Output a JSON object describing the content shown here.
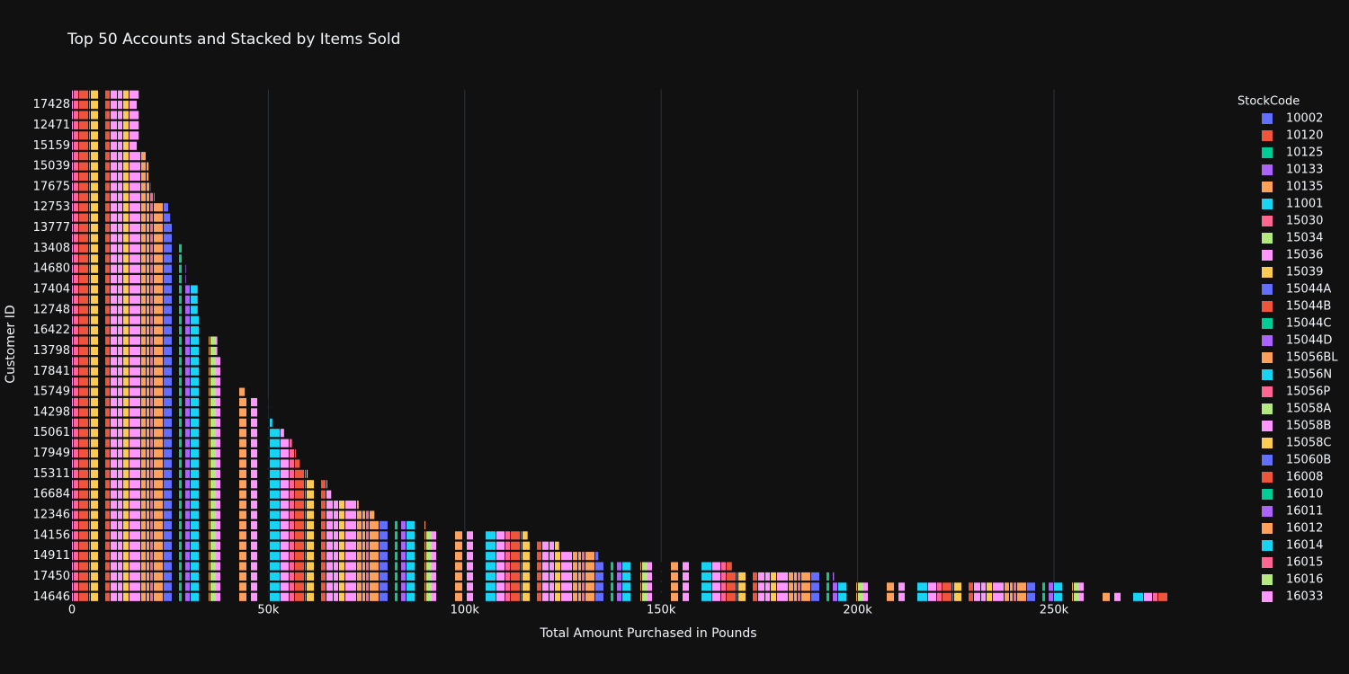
{
  "chart_data": {
    "type": "bar",
    "orientation": "horizontal",
    "title": "Top 50 Accounts and Stacked by Items Sold",
    "x_label": "Total Amount Purchased in Pounds",
    "y_label": "Customer ID",
    "categories": [
      "14646",
      null,
      "17450",
      null,
      "14911",
      null,
      "14156",
      null,
      "12346",
      null,
      "16684",
      null,
      "15311",
      null,
      "17949",
      null,
      "15061",
      null,
      "14298",
      null,
      "15749",
      null,
      "17841",
      null,
      "13798",
      null,
      "16422",
      null,
      "12748",
      null,
      "17404",
      null,
      "14680",
      null,
      "13408",
      null,
      "13777",
      null,
      "12753",
      null,
      "17675",
      null,
      "15039",
      null,
      "15159",
      null,
      "12471",
      null,
      "17428",
      null
    ],
    "values": [
      279000,
      259000,
      194000,
      168000,
      134000,
      124000,
      116000,
      90000,
      77000,
      73000,
      66000,
      65000,
      60000,
      58000,
      57000,
      56000,
      54000,
      51000,
      50000,
      50000,
      44000,
      42000,
      40000,
      40000,
      37000,
      37000,
      34000,
      33000,
      32000,
      32000,
      32000,
      29000,
      29000,
      28000,
      28000,
      27000,
      26000,
      25000,
      24500,
      21000,
      20000,
      19500,
      19500,
      19000,
      16500,
      17000,
      17000,
      17000,
      16500,
      17000
    ],
    "xlim": [
      0,
      281600
    ],
    "xticks": [
      0,
      {
        "value": 50000,
        "label": "50k"
      },
      {
        "value": 100000,
        "label": "100k"
      },
      {
        "value": 150000,
        "label": "150k"
      },
      {
        "value": 200000,
        "label": "200k"
      },
      {
        "value": 250000,
        "label": "250k"
      }
    ],
    "grid": true,
    "legend_title": "StockCode",
    "legend": [
      {
        "name": "10002",
        "color": "#636efa"
      },
      {
        "name": "10120",
        "color": "#EF553B"
      },
      {
        "name": "10125",
        "color": "#00cc96"
      },
      {
        "name": "10133",
        "color": "#ab63fa"
      },
      {
        "name": "10135",
        "color": "#FFA15A"
      },
      {
        "name": "11001",
        "color": "#19d3f3"
      },
      {
        "name": "15030",
        "color": "#FF6692"
      },
      {
        "name": "15034",
        "color": "#B6E880"
      },
      {
        "name": "15036",
        "color": "#FF97FF"
      },
      {
        "name": "15039",
        "color": "#FECB52"
      },
      {
        "name": "15044A",
        "color": "#636efa"
      },
      {
        "name": "15044B",
        "color": "#EF553B"
      },
      {
        "name": "15044C",
        "color": "#00cc96"
      },
      {
        "name": "15044D",
        "color": "#ab63fa"
      },
      {
        "name": "15056BL",
        "color": "#FFA15A"
      },
      {
        "name": "15056N",
        "color": "#19d3f3"
      },
      {
        "name": "15056P",
        "color": "#FF6692"
      },
      {
        "name": "15058A",
        "color": "#B6E880"
      },
      {
        "name": "15058B",
        "color": "#FF97FF"
      },
      {
        "name": "15058C",
        "color": "#FECB52"
      },
      {
        "name": "15060B",
        "color": "#636efa"
      },
      {
        "name": "16008",
        "color": "#EF553B"
      },
      {
        "name": "16010",
        "color": "#00cc96"
      },
      {
        "name": "16011",
        "color": "#ab63fa"
      },
      {
        "name": "16012",
        "color": "#FFA15A"
      },
      {
        "name": "16014",
        "color": "#19d3f3"
      },
      {
        "name": "16015",
        "color": "#FF6692"
      },
      {
        "name": "16016",
        "color": "#B6E880"
      },
      {
        "name": "16033",
        "color": "#FF97FF"
      }
    ]
  }
}
